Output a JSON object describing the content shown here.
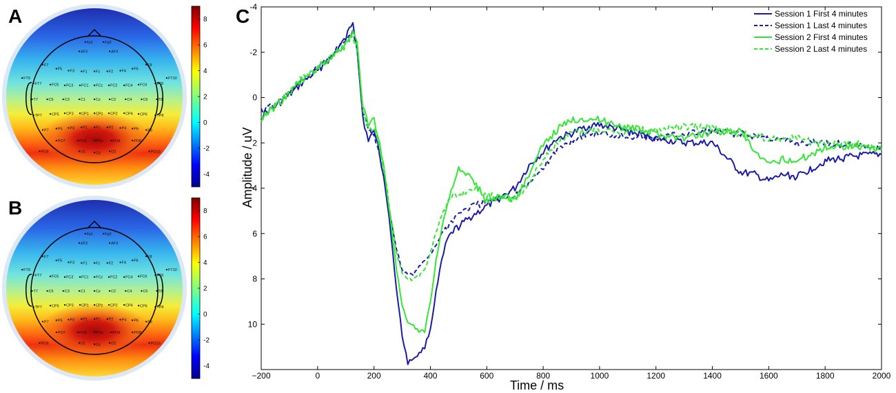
{
  "panels": {
    "A": {
      "letter": "A",
      "colorbar_ticks": [
        "8",
        "6",
        "4",
        "2",
        "0",
        "-2",
        "-4"
      ]
    },
    "B": {
      "letter": "B",
      "colorbar_ticks": [
        "8",
        "6",
        "4",
        "2",
        "0",
        "-2",
        "-4"
      ]
    },
    "C": {
      "letter": "C"
    }
  },
  "topomap": {
    "colorbar_range": [
      -5,
      9
    ],
    "electrodes": [
      "Fp1",
      "Fp2",
      "AF3",
      "AF4",
      "F7",
      "F5",
      "F3",
      "F1",
      "Fz",
      "F2",
      "F4",
      "F6",
      "F8",
      "FT9",
      "FT7",
      "FC5",
      "FC3",
      "FC1",
      "FCz",
      "FC2",
      "FC4",
      "FC6",
      "FT8",
      "FT10",
      "T7",
      "C5",
      "C3",
      "C1",
      "Cz",
      "C2",
      "C4",
      "C6",
      "T8",
      "TP7",
      "CP5",
      "CP3",
      "CP1",
      "CPz",
      "CP2",
      "CP4",
      "CP6",
      "TP8",
      "P7",
      "P5",
      "P3",
      "P1",
      "Pz",
      "P2",
      "P4",
      "P6",
      "P8",
      "PO7",
      "PO3",
      "POz",
      "PO4",
      "PO8",
      "PO9",
      "O1",
      "Oz",
      "O2",
      "PO10"
    ]
  },
  "chart_data": {
    "type": "line",
    "xlabel": "Time / ms",
    "ylabel": "Amplitude / uV",
    "xlim": [
      -200,
      2000
    ],
    "ylim": [
      -4,
      12
    ],
    "y_inverted": true,
    "legend_position": "top-right",
    "x_ticks": [
      "−200",
      "0",
      "200",
      "400",
      "600",
      "800",
      "1000",
      "1200",
      "1400",
      "1600",
      "1800",
      "2000"
    ],
    "y_ticks": [
      "-4",
      "-2",
      "0",
      "2",
      "4",
      "6",
      "8",
      "10"
    ],
    "series": [
      {
        "name": "Session 1 First 4 minutes",
        "color": "#1a1aa6",
        "dash": "solid",
        "x": [
          -200,
          -150,
          -100,
          -50,
          0,
          50,
          100,
          125,
          140,
          160,
          180,
          200,
          220,
          240,
          260,
          280,
          300,
          320,
          340,
          360,
          380,
          400,
          420,
          440,
          460,
          480,
          500,
          550,
          600,
          650,
          700,
          750,
          800,
          850,
          900,
          950,
          1000,
          1100,
          1200,
          1300,
          1400,
          1500,
          1550,
          1600,
          1650,
          1700,
          1800,
          1900,
          2000
        ],
        "y": [
          0.8,
          0.4,
          -0.1,
          -0.7,
          -1.2,
          -1.8,
          -2.6,
          -3.4,
          -2.2,
          0.8,
          2.0,
          1.4,
          2.4,
          4.0,
          6.0,
          8.5,
          10.5,
          11.7,
          11.5,
          11.3,
          11.0,
          10.2,
          8.6,
          7.2,
          6.3,
          5.9,
          5.7,
          5.2,
          4.8,
          4.4,
          4.0,
          3.0,
          2.4,
          1.8,
          1.6,
          1.3,
          1.2,
          1.5,
          1.8,
          2.0,
          2.0,
          3.3,
          3.4,
          3.7,
          3.4,
          3.5,
          2.8,
          2.6,
          2.5
        ]
      },
      {
        "name": "Session 1 Last 4 minutes",
        "color": "#1a1aa6",
        "dash": "dashed",
        "x": [
          -200,
          -150,
          -100,
          -50,
          0,
          50,
          100,
          125,
          140,
          160,
          180,
          200,
          220,
          240,
          260,
          280,
          300,
          320,
          340,
          360,
          380,
          400,
          420,
          440,
          460,
          480,
          500,
          550,
          600,
          650,
          700,
          750,
          800,
          850,
          900,
          950,
          1000,
          1100,
          1200,
          1300,
          1400,
          1500,
          1600,
          1700,
          1800,
          1900,
          2000
        ],
        "y": [
          0.6,
          0.3,
          -0.2,
          -0.8,
          -1.3,
          -1.9,
          -2.5,
          -2.9,
          -2.2,
          0.5,
          1.5,
          1.6,
          2.5,
          3.8,
          5.4,
          6.7,
          7.6,
          7.8,
          7.8,
          7.5,
          7.2,
          6.9,
          6.5,
          6.0,
          5.7,
          5.4,
          5.1,
          4.8,
          4.6,
          4.4,
          4.3,
          3.8,
          3.1,
          2.3,
          1.9,
          1.6,
          1.6,
          1.7,
          1.8,
          1.6,
          1.5,
          1.6,
          1.8,
          2.0,
          2.0,
          2.1,
          2.2
        ]
      },
      {
        "name": "Session 2 First 4 minutes",
        "color": "#33e633",
        "dash": "solid",
        "x": [
          -200,
          -150,
          -100,
          -50,
          0,
          50,
          100,
          125,
          140,
          160,
          180,
          200,
          220,
          240,
          260,
          280,
          300,
          320,
          340,
          360,
          380,
          400,
          420,
          440,
          460,
          480,
          500,
          550,
          600,
          650,
          700,
          750,
          800,
          850,
          900,
          950,
          1000,
          1100,
          1200,
          1300,
          1400,
          1500,
          1550,
          1600,
          1650,
          1700,
          1800,
          1900,
          2000
        ],
        "y": [
          0.9,
          0.4,
          -0.2,
          -0.8,
          -1.3,
          -1.8,
          -2.4,
          -2.9,
          -2.4,
          0.3,
          1.3,
          0.9,
          2.0,
          3.5,
          5.5,
          7.6,
          9.2,
          10.0,
          10.1,
          10.3,
          10.3,
          9.0,
          7.2,
          5.8,
          4.7,
          3.8,
          3.2,
          3.6,
          4.6,
          4.3,
          4.5,
          3.4,
          2.1,
          1.4,
          1.0,
          0.9,
          1.0,
          1.3,
          1.6,
          1.8,
          1.5,
          1.5,
          2.4,
          3.0,
          2.7,
          2.8,
          2.2,
          2.1,
          2.3
        ]
      },
      {
        "name": "Session 2 Last 4 minutes",
        "color": "#33e633",
        "dash": "dashed",
        "x": [
          -200,
          -150,
          -100,
          -50,
          0,
          50,
          100,
          125,
          140,
          160,
          180,
          200,
          220,
          240,
          260,
          280,
          300,
          320,
          340,
          360,
          380,
          400,
          420,
          440,
          460,
          480,
          500,
          550,
          600,
          650,
          700,
          750,
          800,
          850,
          900,
          950,
          1000,
          1100,
          1200,
          1300,
          1400,
          1500,
          1600,
          1700,
          1800,
          1900,
          2000
        ],
        "y": [
          1.0,
          0.3,
          -0.3,
          -0.9,
          -1.3,
          -1.8,
          -2.3,
          -2.7,
          -2.2,
          0.4,
          1.4,
          1.4,
          2.3,
          3.6,
          5.3,
          6.8,
          7.8,
          8.0,
          8.0,
          7.9,
          7.6,
          6.8,
          5.9,
          5.2,
          4.7,
          4.4,
          4.3,
          4.0,
          4.3,
          4.4,
          4.5,
          3.8,
          2.7,
          2.0,
          1.6,
          1.5,
          1.4,
          1.5,
          1.4,
          1.3,
          1.3,
          1.6,
          1.8,
          1.8,
          2.1,
          2.0,
          2.3
        ]
      }
    ]
  }
}
